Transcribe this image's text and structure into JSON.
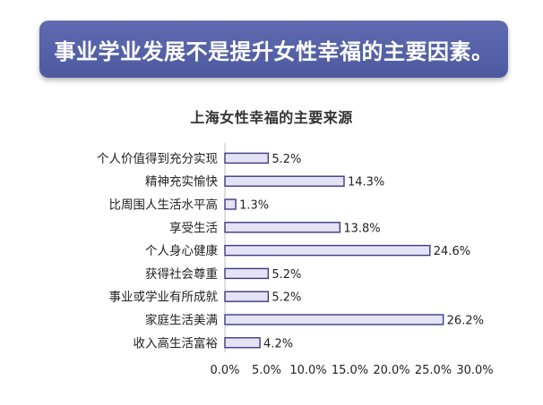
{
  "banner": {
    "text": "事业学业发展不是提升女性幸福的主要因素。"
  },
  "colors": {
    "banner_bg": "#5864a8",
    "bar_fill": "#e4e2f4",
    "bar_stroke": "#3c3a7e",
    "highlight_value": "#d81e1e"
  },
  "chart_data": {
    "type": "bar",
    "orientation": "horizontal",
    "title": "上海女性幸福的主要来源",
    "categories": [
      "个人价值得到充分实现",
      "精神充实愉快",
      "比周围人生活水平高",
      "享受生活",
      "个人身心健康",
      "获得社会尊重",
      "事业或学业有所成就",
      "家庭生活美满",
      "收入高生活富裕"
    ],
    "values": [
      5.2,
      14.3,
      1.3,
      13.8,
      24.6,
      5.2,
      5.2,
      26.2,
      4.2
    ],
    "value_labels": [
      "5.2%",
      "14.3%",
      "1.3%",
      "13.8%",
      "24.6%",
      "5.2%",
      "5.2%",
      "26.2%",
      "4.2%"
    ],
    "highlighted_index": 6,
    "xlim": [
      0,
      30
    ],
    "xticks": [
      "0.0%",
      "5.0%",
      "10.0%",
      "15.0%",
      "20.0%",
      "25.0%",
      "30.0%"
    ],
    "grid": false,
    "legend": "none"
  }
}
